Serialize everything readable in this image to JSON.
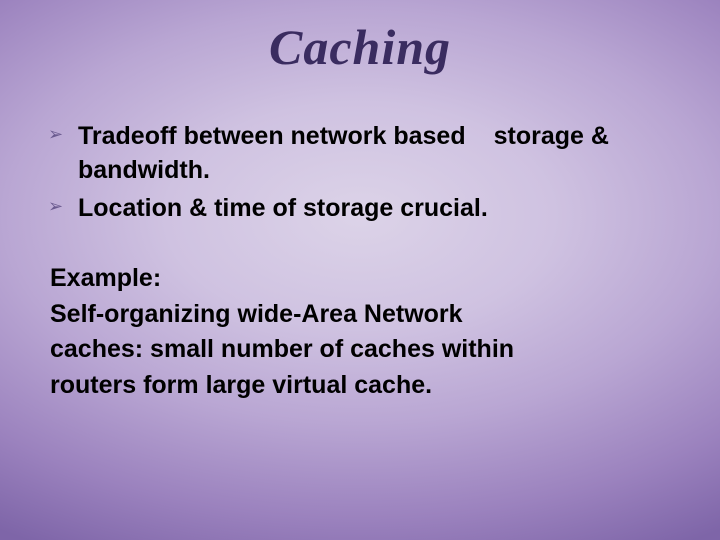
{
  "slide": {
    "title": "Caching",
    "bullets": [
      {
        "text_a": "Tradeoff between network based",
        "text_b": "storage & bandwidth."
      },
      {
        "text_a": "Location & time of storage crucial.",
        "text_b": ""
      }
    ],
    "body": [
      "Example:",
      "Self-organizing wide-Area Network",
      "caches: small number of caches within",
      "routers form large virtual cache."
    ],
    "bullet_marker": "➢",
    "colors": {
      "title": "#3a2c60",
      "marker": "#6a5a8f",
      "text": "#000000",
      "bg_inner": "#dcd3e8",
      "bg_outer": "#7e65a8"
    },
    "fontsize": {
      "title": 50,
      "body": 25,
      "marker": 18
    }
  }
}
